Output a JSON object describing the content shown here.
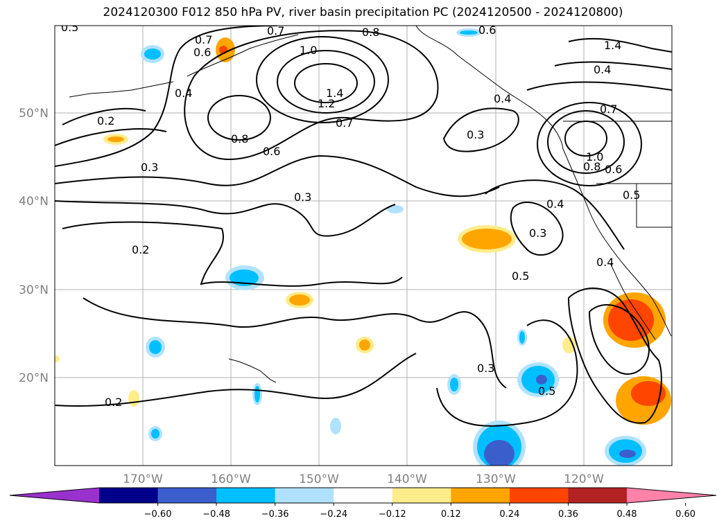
{
  "title": "2024120300 F012 850 hPa PV, river basin precipitation PC (2024120500 - 2024120800)",
  "lon_labels": [
    "170°W",
    "160°W",
    "150°W",
    "140°W",
    "130°W",
    "120°W"
  ],
  "lat_labels": [
    "50°N",
    "40°N",
    "30°N",
    "20°N"
  ],
  "colorbar": {
    "ticks": [
      "−0.60",
      "−0.48",
      "−0.36",
      "−0.24",
      "−0.12",
      "0.12",
      "0.24",
      "0.36",
      "0.48",
      "0.60"
    ],
    "colors": [
      "#9932cc",
      "#00008b",
      "#3a5fcd",
      "#00bfff",
      "#b0e2ff",
      "#ffffff",
      "#ffec8b",
      "#ffa500",
      "#ff4500",
      "#b22222",
      "#ff82ab"
    ]
  },
  "contour_labels": [
    "0.5",
    "0.7",
    "0.6",
    "0.7",
    "0.8",
    "0.6",
    "1.4",
    "1.0",
    "1.4",
    "1.2",
    "0.7",
    "0.8",
    "0.6",
    "0.4",
    "0.2",
    "0.3",
    "0.3",
    "0.2",
    "0.3",
    "0.4",
    "0.3",
    "0.5",
    "0.4",
    "0.5",
    "0.3",
    "0.5",
    "0.2",
    "0.7",
    "1.0",
    "0.8",
    "0.6",
    "0.4",
    "0.4"
  ]
}
